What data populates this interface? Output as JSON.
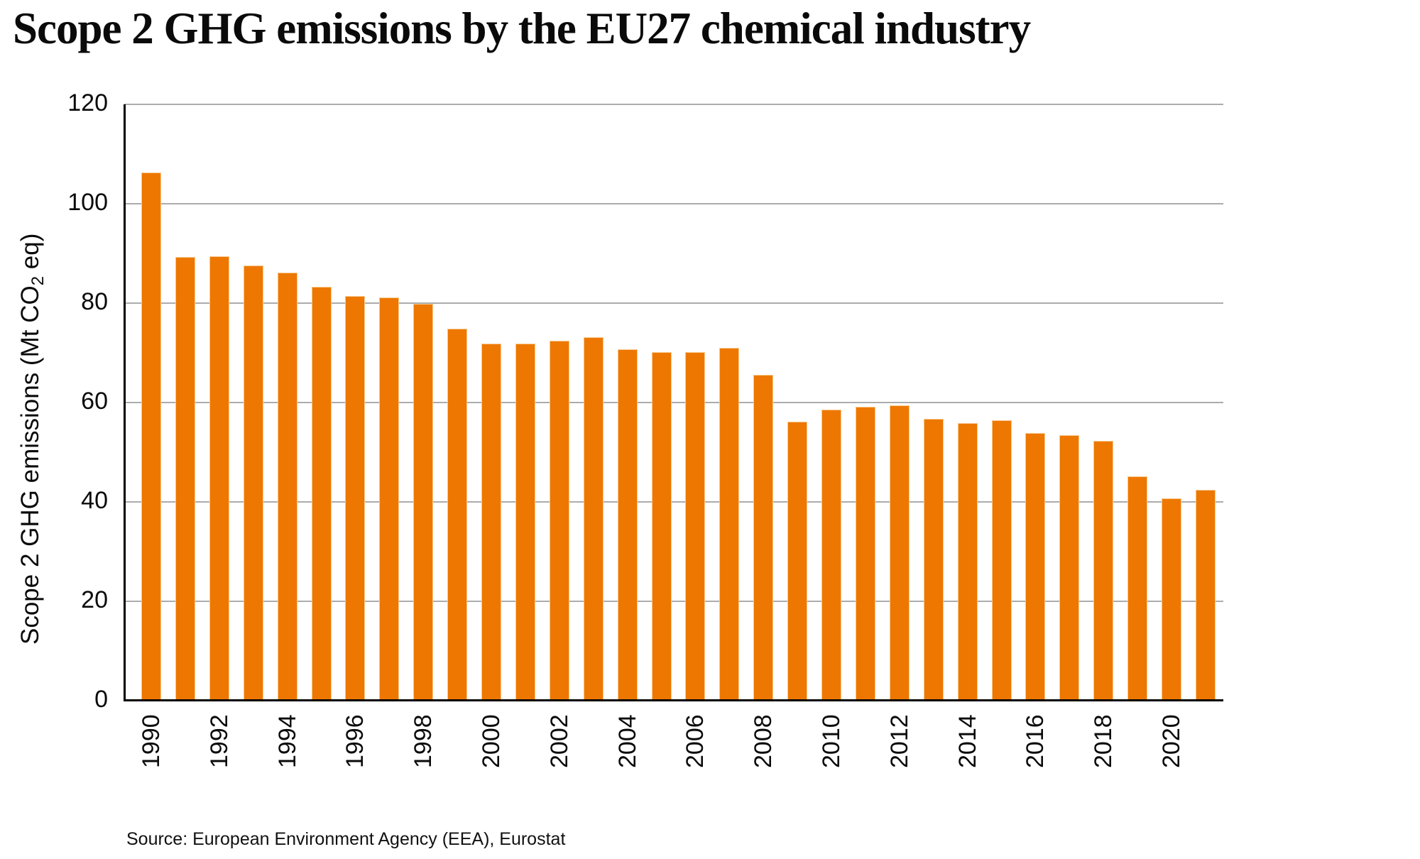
{
  "title": "Scope 2 GHG emissions by the EU27 chemical industry",
  "source": "Source: European Environment Agency (EEA), Eurostat",
  "colors": {
    "bar": "#ED7700",
    "bar_edge": "#f8c88d",
    "gridline": "#acacac",
    "axis": "#000000",
    "text": "#0a0a0a"
  },
  "y_axis": {
    "label_pre": "Scope 2 GHG emissions (Mt CO",
    "label_sub": "2",
    "label_post": " eq)"
  },
  "chart_data": {
    "type": "bar",
    "title": "Scope 2 GHG emissions by the EU27 chemical industry",
    "xlabel": "",
    "ylabel": "Scope 2 GHG emissions (Mt CO₂ eq)",
    "categories": [
      1990,
      1991,
      1992,
      1993,
      1994,
      1995,
      1996,
      1997,
      1998,
      1999,
      2000,
      2001,
      2002,
      2003,
      2004,
      2005,
      2006,
      2007,
      2008,
      2009,
      2010,
      2011,
      2012,
      2013,
      2014,
      2015,
      2016,
      2017,
      2018,
      2019,
      2020,
      2021
    ],
    "values": [
      106.3,
      89.3,
      89.5,
      87.6,
      86.2,
      83.3,
      81.4,
      81.1,
      79.9,
      74.9,
      71.9,
      71.8,
      72.4,
      73.1,
      70.7,
      70.2,
      70.2,
      71.0,
      65.6,
      56.2,
      58.6,
      59.1,
      59.4,
      56.7,
      55.9,
      56.4,
      53.9,
      53.5,
      52.3,
      45.2,
      40.7,
      42.5
    ],
    "ylim": [
      0,
      120
    ],
    "yticks": [
      0,
      20,
      40,
      60,
      80,
      100,
      120
    ],
    "xtick_labels": [
      "1990",
      "1992",
      "1994",
      "1996",
      "1998",
      "2000",
      "2002",
      "2004",
      "2006",
      "2008",
      "2010",
      "2012",
      "2014",
      "2016",
      "2018",
      "2020"
    ],
    "xtick_every": 2,
    "grid": true,
    "legend": "none",
    "source": "Source: European Environment Agency (EEA), Eurostat"
  }
}
